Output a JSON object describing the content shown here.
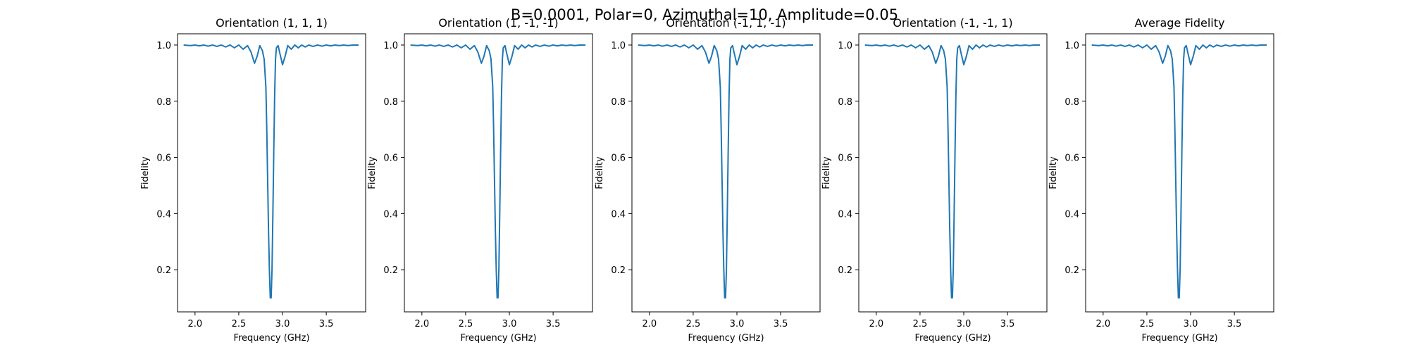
{
  "figure": {
    "suptitle": "B=0.0001, Polar=0, Azimuthal=10, Amplitude=0.05",
    "line_color": "#1f77b4"
  },
  "chart_data": [
    {
      "type": "line",
      "title": "Orientation (1, 1, 1)",
      "xlabel": "Frequency (GHz)",
      "ylabel": "Fidelity",
      "xlim": [
        1.8,
        3.95
      ],
      "ylim": [
        0.05,
        1.04
      ],
      "xticks": [
        "2.0",
        "2.5",
        "3.0",
        "3.5"
      ],
      "yticks": [
        "0.2",
        "0.4",
        "0.6",
        "0.8",
        "1.0"
      ],
      "grid": false,
      "series": [
        {
          "x": [
            1.87,
            1.95,
            2.0,
            2.05,
            2.1,
            2.15,
            2.2,
            2.25,
            2.3,
            2.35,
            2.4,
            2.45,
            2.5,
            2.55,
            2.6,
            2.64,
            2.68,
            2.71,
            2.74,
            2.77,
            2.79,
            2.81,
            2.82,
            2.83,
            2.84,
            2.85,
            2.86,
            2.87,
            2.88,
            2.89,
            2.9,
            2.91,
            2.92,
            2.93,
            2.95,
            2.97,
            3.0,
            3.03,
            3.06,
            3.1,
            3.14,
            3.18,
            3.22,
            3.26,
            3.3,
            3.35,
            3.4,
            3.45,
            3.5,
            3.55,
            3.6,
            3.65,
            3.7,
            3.75,
            3.8,
            3.87
          ],
          "y": [
            1.0,
            0.998,
            1.0,
            0.997,
            1.0,
            0.996,
            1.0,
            0.995,
            1.0,
            0.993,
            1.0,
            0.99,
            1.0,
            0.985,
            0.998,
            0.975,
            0.935,
            0.96,
            0.998,
            0.98,
            0.95,
            0.85,
            0.7,
            0.52,
            0.34,
            0.2,
            0.1,
            0.1,
            0.2,
            0.4,
            0.62,
            0.82,
            0.95,
            0.99,
            0.998,
            0.97,
            0.93,
            0.96,
            0.998,
            0.985,
            1.0,
            0.99,
            1.0,
            0.993,
            1.0,
            0.995,
            1.0,
            0.996,
            1.0,
            0.997,
            1.0,
            0.998,
            1.0,
            0.998,
            1.0,
            1.0
          ]
        }
      ]
    },
    {
      "type": "line",
      "title": "Orientation (1, -1, -1)",
      "xlabel": "Frequency (GHz)",
      "ylabel": "Fidelity",
      "xlim": [
        1.8,
        3.95
      ],
      "ylim": [
        0.05,
        1.04
      ],
      "xticks": [
        "2.0",
        "2.5",
        "3.0",
        "3.5"
      ],
      "yticks": [
        "0.2",
        "0.4",
        "0.6",
        "0.8",
        "1.0"
      ],
      "grid": false,
      "series": [
        {
          "x": [
            1.87,
            1.95,
            2.0,
            2.05,
            2.1,
            2.15,
            2.2,
            2.25,
            2.3,
            2.35,
            2.4,
            2.45,
            2.5,
            2.55,
            2.6,
            2.64,
            2.68,
            2.71,
            2.74,
            2.77,
            2.79,
            2.81,
            2.82,
            2.83,
            2.84,
            2.85,
            2.86,
            2.87,
            2.88,
            2.89,
            2.9,
            2.91,
            2.92,
            2.93,
            2.95,
            2.97,
            3.0,
            3.03,
            3.06,
            3.1,
            3.14,
            3.18,
            3.22,
            3.26,
            3.3,
            3.35,
            3.4,
            3.45,
            3.5,
            3.55,
            3.6,
            3.65,
            3.7,
            3.75,
            3.8,
            3.87
          ],
          "y": [
            1.0,
            0.998,
            1.0,
            0.997,
            1.0,
            0.996,
            1.0,
            0.995,
            1.0,
            0.993,
            1.0,
            0.99,
            1.0,
            0.985,
            0.998,
            0.975,
            0.935,
            0.96,
            0.998,
            0.98,
            0.95,
            0.85,
            0.7,
            0.52,
            0.34,
            0.2,
            0.1,
            0.1,
            0.2,
            0.4,
            0.62,
            0.82,
            0.95,
            0.99,
            0.998,
            0.97,
            0.93,
            0.96,
            0.998,
            0.985,
            1.0,
            0.99,
            1.0,
            0.993,
            1.0,
            0.995,
            1.0,
            0.996,
            1.0,
            0.997,
            1.0,
            0.998,
            1.0,
            0.998,
            1.0,
            1.0
          ]
        }
      ]
    },
    {
      "type": "line",
      "title": "Orientation (-1, 1, -1)",
      "xlabel": "Frequency (GHz)",
      "ylabel": "Fidelity",
      "xlim": [
        1.8,
        3.95
      ],
      "ylim": [
        0.05,
        1.04
      ],
      "xticks": [
        "2.0",
        "2.5",
        "3.0",
        "3.5"
      ],
      "yticks": [
        "0.2",
        "0.4",
        "0.6",
        "0.8",
        "1.0"
      ],
      "grid": false,
      "series": [
        {
          "x": [
            1.87,
            1.95,
            2.0,
            2.05,
            2.1,
            2.15,
            2.2,
            2.25,
            2.3,
            2.35,
            2.4,
            2.45,
            2.5,
            2.55,
            2.6,
            2.64,
            2.68,
            2.71,
            2.74,
            2.77,
            2.79,
            2.81,
            2.82,
            2.83,
            2.84,
            2.85,
            2.86,
            2.87,
            2.88,
            2.89,
            2.9,
            2.91,
            2.92,
            2.93,
            2.95,
            2.97,
            3.0,
            3.03,
            3.06,
            3.1,
            3.14,
            3.18,
            3.22,
            3.26,
            3.3,
            3.35,
            3.4,
            3.45,
            3.5,
            3.55,
            3.6,
            3.65,
            3.7,
            3.75,
            3.8,
            3.87
          ],
          "y": [
            1.0,
            0.998,
            1.0,
            0.997,
            1.0,
            0.996,
            1.0,
            0.995,
            1.0,
            0.993,
            1.0,
            0.99,
            1.0,
            0.985,
            0.998,
            0.975,
            0.935,
            0.96,
            0.998,
            0.98,
            0.95,
            0.85,
            0.7,
            0.52,
            0.34,
            0.2,
            0.1,
            0.1,
            0.2,
            0.4,
            0.62,
            0.82,
            0.95,
            0.99,
            0.998,
            0.97,
            0.93,
            0.96,
            0.998,
            0.985,
            1.0,
            0.99,
            1.0,
            0.993,
            1.0,
            0.995,
            1.0,
            0.996,
            1.0,
            0.997,
            1.0,
            0.998,
            1.0,
            0.998,
            1.0,
            1.0
          ]
        }
      ]
    },
    {
      "type": "line",
      "title": "Orientation (-1, -1, 1)",
      "xlabel": "Frequency (GHz)",
      "ylabel": "Fidelity",
      "xlim": [
        1.8,
        3.95
      ],
      "ylim": [
        0.05,
        1.04
      ],
      "xticks": [
        "2.0",
        "2.5",
        "3.0",
        "3.5"
      ],
      "yticks": [
        "0.2",
        "0.4",
        "0.6",
        "0.8",
        "1.0"
      ],
      "grid": false,
      "series": [
        {
          "x": [
            1.87,
            1.95,
            2.0,
            2.05,
            2.1,
            2.15,
            2.2,
            2.25,
            2.3,
            2.35,
            2.4,
            2.45,
            2.5,
            2.55,
            2.6,
            2.64,
            2.68,
            2.71,
            2.74,
            2.77,
            2.79,
            2.81,
            2.82,
            2.83,
            2.84,
            2.85,
            2.86,
            2.87,
            2.88,
            2.89,
            2.9,
            2.91,
            2.92,
            2.93,
            2.95,
            2.97,
            3.0,
            3.03,
            3.06,
            3.1,
            3.14,
            3.18,
            3.22,
            3.26,
            3.3,
            3.35,
            3.4,
            3.45,
            3.5,
            3.55,
            3.6,
            3.65,
            3.7,
            3.75,
            3.8,
            3.87
          ],
          "y": [
            1.0,
            0.998,
            1.0,
            0.997,
            1.0,
            0.996,
            1.0,
            0.995,
            1.0,
            0.993,
            1.0,
            0.99,
            1.0,
            0.985,
            0.998,
            0.975,
            0.935,
            0.96,
            0.998,
            0.98,
            0.95,
            0.85,
            0.7,
            0.52,
            0.34,
            0.2,
            0.1,
            0.1,
            0.2,
            0.4,
            0.62,
            0.82,
            0.95,
            0.99,
            0.998,
            0.97,
            0.93,
            0.96,
            0.998,
            0.985,
            1.0,
            0.99,
            1.0,
            0.993,
            1.0,
            0.995,
            1.0,
            0.996,
            1.0,
            0.997,
            1.0,
            0.998,
            1.0,
            0.998,
            1.0,
            1.0
          ]
        }
      ]
    },
    {
      "type": "line",
      "title": "Average Fidelity",
      "xlabel": "Frequency (GHz)",
      "ylabel": "Fidelity",
      "xlim": [
        1.8,
        3.95
      ],
      "ylim": [
        0.05,
        1.04
      ],
      "xticks": [
        "2.0",
        "2.5",
        "3.0",
        "3.5"
      ],
      "yticks": [
        "0.2",
        "0.4",
        "0.6",
        "0.8",
        "1.0"
      ],
      "grid": false,
      "series": [
        {
          "x": [
            1.87,
            1.95,
            2.0,
            2.05,
            2.1,
            2.15,
            2.2,
            2.25,
            2.3,
            2.35,
            2.4,
            2.45,
            2.5,
            2.55,
            2.6,
            2.64,
            2.68,
            2.71,
            2.74,
            2.77,
            2.79,
            2.81,
            2.82,
            2.83,
            2.84,
            2.85,
            2.86,
            2.87,
            2.88,
            2.89,
            2.9,
            2.91,
            2.92,
            2.93,
            2.95,
            2.97,
            3.0,
            3.03,
            3.06,
            3.1,
            3.14,
            3.18,
            3.22,
            3.26,
            3.3,
            3.35,
            3.4,
            3.45,
            3.5,
            3.55,
            3.6,
            3.65,
            3.7,
            3.75,
            3.8,
            3.87
          ],
          "y": [
            1.0,
            0.998,
            1.0,
            0.997,
            1.0,
            0.996,
            1.0,
            0.995,
            1.0,
            0.993,
            1.0,
            0.99,
            1.0,
            0.985,
            0.998,
            0.975,
            0.935,
            0.96,
            0.998,
            0.98,
            0.95,
            0.85,
            0.7,
            0.52,
            0.34,
            0.2,
            0.1,
            0.1,
            0.2,
            0.4,
            0.62,
            0.82,
            0.95,
            0.99,
            0.998,
            0.97,
            0.93,
            0.96,
            0.998,
            0.985,
            1.0,
            0.99,
            1.0,
            0.993,
            1.0,
            0.995,
            1.0,
            0.996,
            1.0,
            0.997,
            1.0,
            0.998,
            1.0,
            0.998,
            1.0,
            1.0
          ]
        }
      ]
    }
  ]
}
